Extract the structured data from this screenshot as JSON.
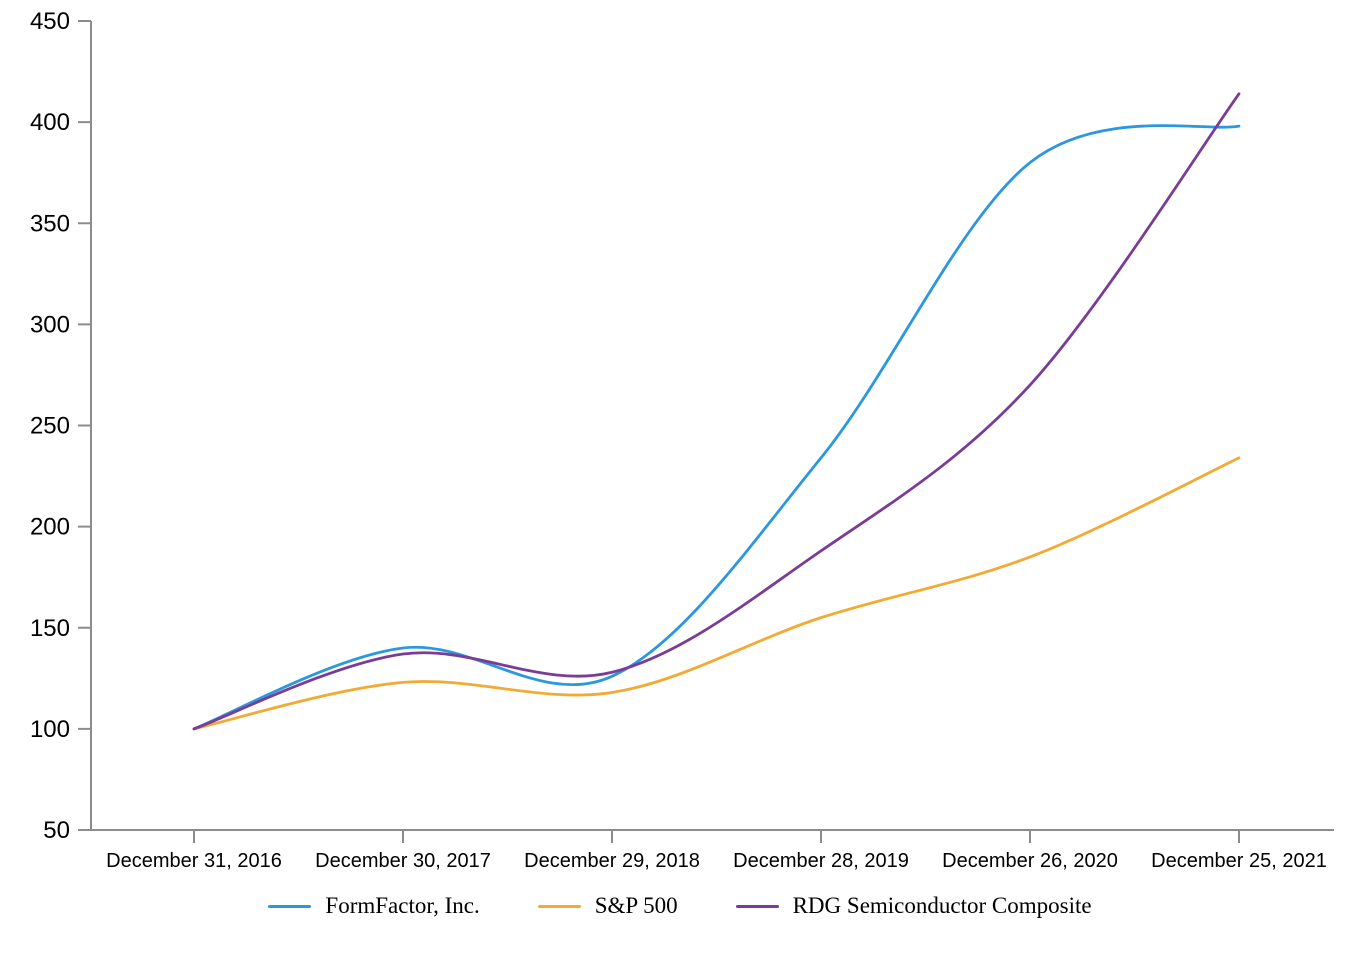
{
  "chart_data": {
    "type": "line",
    "title": "",
    "xlabel": "",
    "ylabel": "",
    "x_labels": [
      "December 31, 2016",
      "December 30, 2017",
      "December 29, 2018",
      "December 28, 2019",
      "December 26, 2020",
      "December 25, 2021"
    ],
    "y_ticks": [
      450,
      400,
      350,
      300,
      250,
      200,
      150,
      100,
      50
    ],
    "ylim": [
      50,
      450
    ],
    "grid": false,
    "legend_position": "bottom",
    "axis_color": "#8c8c8c",
    "text_color": "#000000",
    "series": [
      {
        "name": "FormFactor, Inc.",
        "color": "#2b97df",
        "values": [
          100,
          140,
          126,
          234,
          380,
          398
        ]
      },
      {
        "name": "S&P 500",
        "color": "#f3aa33",
        "values": [
          100,
          123,
          118,
          155,
          185,
          234
        ]
      },
      {
        "name": "RDG Semiconductor Composite",
        "color": "#7a3c96",
        "values": [
          100,
          137,
          128,
          188,
          270,
          414
        ]
      }
    ]
  }
}
